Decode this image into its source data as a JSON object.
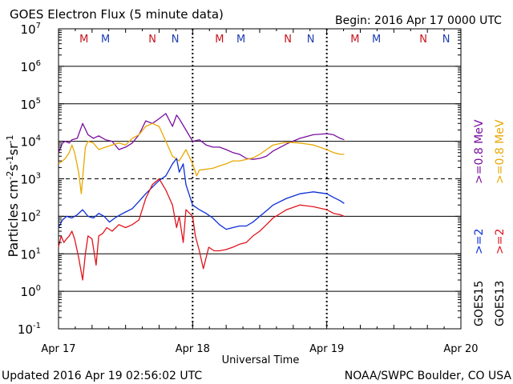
{
  "header": {
    "title": "GOES Electron Flux (5 minute data)",
    "begin": "Begin: 2016 Apr 17 0000 UTC"
  },
  "footer": {
    "updated": "Updated 2016 Apr 19 02:56:02 UTC",
    "credit": "NOAA/SWPC Boulder, CO USA"
  },
  "colors": {
    "goes15_ge08": "#7a0f9e",
    "goes13_ge08": "#e8a800",
    "goes15_ge2": "#0c2fd6",
    "goes13_ge2": "#e0141c",
    "marker_m": "#c8141c",
    "marker_m_alt": "#1f3fb0",
    "marker_n": "#c8141c",
    "marker_n_alt": "#1f3fb0"
  },
  "chart_data": {
    "type": "line",
    "title": "GOES Electron Flux (5 minute data)",
    "xlabel": "Universal Time",
    "ylabel": "Particles cm-2s-1sr-1",
    "yscale": "log",
    "ylim": [
      0.1,
      10000000
    ],
    "xlim_days": [
      0,
      3
    ],
    "x_unit": "days since 2016 Apr 17 0000 UTC",
    "x_ticks": [
      {
        "day": 0,
        "label": "Apr 17"
      },
      {
        "day": 1,
        "label": "Apr 18"
      },
      {
        "day": 2,
        "label": "Apr 19"
      },
      {
        "day": 3,
        "label": "Apr 20"
      }
    ],
    "y_ticks": [
      {
        "value": 0.1,
        "mant": "10",
        "exp": "-1"
      },
      {
        "value": 1,
        "mant": "10",
        "exp": "0"
      },
      {
        "value": 10,
        "mant": "10",
        "exp": "1"
      },
      {
        "value": 100,
        "mant": "10",
        "exp": "2"
      },
      {
        "value": 1000,
        "mant": "10",
        "exp": "3"
      },
      {
        "value": 10000,
        "mant": "10",
        "exp": "4"
      },
      {
        "value": 100000,
        "mant": "10",
        "exp": "5"
      },
      {
        "value": 1000000,
        "mant": "10",
        "exp": "6"
      },
      {
        "value": 10000000,
        "mant": "10",
        "exp": "7"
      }
    ],
    "gridlines": {
      "solid": [
        1,
        10,
        100,
        10000,
        100000,
        1000000
      ],
      "dashed": [
        1000
      ]
    },
    "markers": [
      {
        "day": 0.19,
        "label": "M",
        "colorKey": "marker_m"
      },
      {
        "day": 0.35,
        "label": "M",
        "colorKey": "marker_m_alt"
      },
      {
        "day": 0.7,
        "label": "N",
        "colorKey": "marker_n"
      },
      {
        "day": 0.87,
        "label": "N",
        "colorKey": "marker_n_alt"
      },
      {
        "day": 1.2,
        "label": "M",
        "colorKey": "marker_m"
      },
      {
        "day": 1.36,
        "label": "M",
        "colorKey": "marker_m_alt"
      },
      {
        "day": 1.71,
        "label": "N",
        "colorKey": "marker_n"
      },
      {
        "day": 1.88,
        "label": "N",
        "colorKey": "marker_n_alt"
      },
      {
        "day": 2.21,
        "label": "M",
        "colorKey": "marker_m"
      },
      {
        "day": 2.37,
        "label": "M",
        "colorKey": "marker_m_alt"
      },
      {
        "day": 2.72,
        "label": "N",
        "colorKey": "marker_n"
      },
      {
        "day": 2.89,
        "label": "N",
        "colorKey": "marker_n_alt"
      }
    ],
    "legend": [
      {
        "sat": "GOES15",
        "ge2": ">=2",
        "ge08": ">=0.8 MeV",
        "ge2Key": "goes15_ge2",
        "ge08Key": "goes15_ge08"
      },
      {
        "sat": "GOES13",
        "ge2": ">=2",
        "ge08": ">=0.8 MeV",
        "ge2Key": "goes13_ge2",
        "ge08Key": "goes13_ge08"
      }
    ],
    "series": [
      {
        "name": "GOES15 >=0.8 MeV",
        "colorKey": "goes15_ge08",
        "x": [
          0,
          0.03,
          0.05,
          0.08,
          0.1,
          0.14,
          0.18,
          0.22,
          0.26,
          0.3,
          0.35,
          0.4,
          0.45,
          0.5,
          0.55,
          0.6,
          0.65,
          0.7,
          0.75,
          0.8,
          0.85,
          0.88,
          0.9,
          0.95,
          1.0,
          1.05,
          1.1,
          1.15,
          1.2,
          1.25,
          1.3,
          1.35,
          1.4,
          1.45,
          1.5,
          1.55,
          1.6,
          1.7,
          1.8,
          1.9,
          2.0,
          2.05,
          2.1,
          2.13
        ],
        "y": [
          5000,
          9000,
          10000,
          9000,
          11000,
          12000,
          30000,
          15000,
          12000,
          14000,
          11000,
          10000,
          6000,
          7000,
          9000,
          15000,
          35000,
          30000,
          40000,
          55000,
          25000,
          50000,
          40000,
          20000,
          10000,
          11000,
          8000,
          7000,
          7000,
          6000,
          5000,
          4500,
          3500,
          3300,
          3500,
          4000,
          5500,
          8500,
          12000,
          15000,
          16000,
          15000,
          12000,
          11000
        ]
      },
      {
        "name": "GOES13 >=0.8 MeV",
        "colorKey": "goes13_ge08",
        "x": [
          0,
          0.03,
          0.05,
          0.08,
          0.1,
          0.12,
          0.15,
          0.17,
          0.2,
          0.22,
          0.26,
          0.3,
          0.35,
          0.4,
          0.45,
          0.5,
          0.55,
          0.6,
          0.65,
          0.7,
          0.75,
          0.8,
          0.85,
          0.9,
          0.95,
          1.0,
          1.03,
          1.05,
          1.1,
          1.15,
          1.2,
          1.25,
          1.3,
          1.35,
          1.4,
          1.45,
          1.5,
          1.55,
          1.6,
          1.7,
          1.8,
          1.9,
          2.0,
          2.05,
          2.1,
          2.13
        ],
        "y": [
          2500,
          3000,
          3500,
          5000,
          8000,
          5000,
          1500,
          400,
          7000,
          10000,
          9000,
          6000,
          7000,
          8000,
          9000,
          8000,
          12000,
          15000,
          25000,
          30000,
          25000,
          10000,
          4000,
          3000,
          6000,
          2500,
          1200,
          1700,
          1800,
          1900,
          2200,
          2500,
          3000,
          3000,
          3300,
          3600,
          4500,
          6000,
          8000,
          9500,
          9000,
          8000,
          6000,
          5000,
          4500,
          4500
        ]
      },
      {
        "name": "GOES15 >=2 MeV",
        "colorKey": "goes15_ge2",
        "x": [
          0,
          0.03,
          0.06,
          0.1,
          0.14,
          0.18,
          0.22,
          0.26,
          0.3,
          0.34,
          0.38,
          0.42,
          0.46,
          0.5,
          0.55,
          0.6,
          0.65,
          0.7,
          0.75,
          0.8,
          0.85,
          0.88,
          0.9,
          0.93,
          0.95,
          1.0,
          1.05,
          1.1,
          1.15,
          1.2,
          1.25,
          1.3,
          1.35,
          1.4,
          1.45,
          1.5,
          1.55,
          1.6,
          1.7,
          1.8,
          1.9,
          2.0,
          2.05,
          2.1,
          2.13
        ],
        "y": [
          50,
          80,
          100,
          90,
          110,
          150,
          100,
          90,
          120,
          100,
          70,
          90,
          110,
          130,
          160,
          250,
          400,
          600,
          900,
          1200,
          2500,
          3500,
          1500,
          2500,
          700,
          200,
          150,
          120,
          90,
          60,
          45,
          50,
          55,
          55,
          70,
          100,
          140,
          200,
          300,
          400,
          450,
          400,
          320,
          260,
          220
        ]
      },
      {
        "name": "GOES13 >=2 MeV",
        "colorKey": "goes13_ge2",
        "x": [
          0,
          0.02,
          0.04,
          0.06,
          0.08,
          0.1,
          0.12,
          0.15,
          0.18,
          0.2,
          0.22,
          0.25,
          0.28,
          0.3,
          0.33,
          0.36,
          0.4,
          0.45,
          0.5,
          0.55,
          0.6,
          0.65,
          0.7,
          0.75,
          0.8,
          0.85,
          0.88,
          0.9,
          0.93,
          0.95,
          1.0,
          1.02,
          1.05,
          1.08,
          1.12,
          1.16,
          1.2,
          1.25,
          1.3,
          1.35,
          1.4,
          1.45,
          1.5,
          1.55,
          1.6,
          1.7,
          1.8,
          1.9,
          2.0,
          2.05,
          2.1,
          2.13
        ],
        "y": [
          15,
          30,
          20,
          25,
          30,
          40,
          25,
          8,
          2,
          10,
          30,
          25,
          5,
          30,
          35,
          50,
          40,
          60,
          50,
          60,
          80,
          300,
          700,
          1000,
          500,
          200,
          50,
          100,
          20,
          150,
          100,
          30,
          12,
          4,
          15,
          12,
          12,
          13,
          15,
          18,
          20,
          30,
          40,
          60,
          90,
          150,
          200,
          180,
          150,
          120,
          110,
          100
        ]
      }
    ]
  }
}
